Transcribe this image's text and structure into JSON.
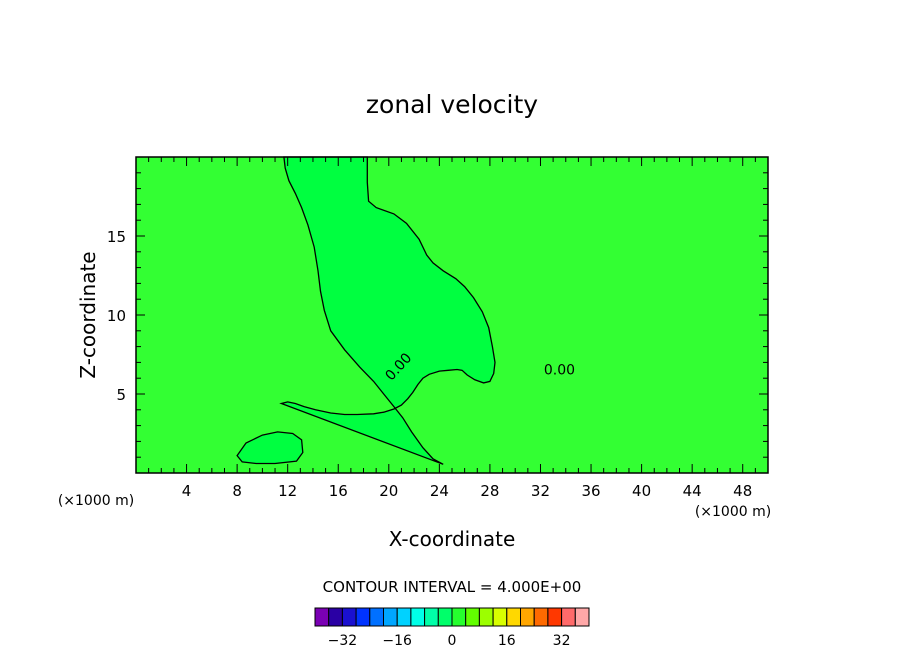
{
  "chart_data": {
    "type": "heatmap",
    "title": "zonal velocity",
    "xlabel": "X-coordinate",
    "ylabel": "Z-coordinate",
    "x_unit": "(×1000 m)",
    "xlim": [
      0,
      50
    ],
    "ylim": [
      0,
      20
    ],
    "x_ticks": [
      4,
      8,
      12,
      16,
      20,
      24,
      28,
      32,
      36,
      40,
      44,
      48
    ],
    "y_ticks": [
      5,
      10,
      15
    ],
    "contour_interval_text": "CONTOUR INTERVAL = 4.000E+00",
    "contour_label": "0.00",
    "colorbar": {
      "levels": [
        -36,
        -32,
        -28,
        -24,
        -20,
        -16,
        -12,
        -8,
        -4,
        0,
        4,
        8,
        12,
        16,
        20,
        24,
        28,
        32,
        36
      ],
      "colors": [
        "#7a00b4",
        "#2a00a4",
        "#1a10d0",
        "#0033ff",
        "#0070ff",
        "#00a6ff",
        "#00d2ff",
        "#00ffe8",
        "#00ffa8",
        "#00ff6a",
        "#26ff2e",
        "#62ff00",
        "#9cff00",
        "#d8ff00",
        "#ffd800",
        "#ffa600",
        "#ff6a00",
        "#ff3800",
        "#ff6a6a",
        "#ffa8a8"
      ],
      "tick_labels": [
        {
          "value": -32,
          "text": "−32"
        },
        {
          "value": -16,
          "text": "−16"
        },
        {
          "value": 0,
          "text": "0"
        },
        {
          "value": 16,
          "text": "16"
        },
        {
          "value": 32,
          "text": "32"
        }
      ]
    },
    "field": {
      "background_color": "#33ff33",
      "regions": [
        {
          "name": "zero-contour-plume",
          "fill": "#00ff40",
          "value_range": [
            0,
            4
          ],
          "outline": [
            [
              24.3,
              0.55
            ],
            [
              23.5,
              0.9
            ],
            [
              22.7,
              1.6
            ],
            [
              21.8,
              2.6
            ],
            [
              21.1,
              3.5
            ],
            [
              20.4,
              4.2
            ],
            [
              19.6,
              5.0
            ],
            [
              18.8,
              5.8
            ],
            [
              17.7,
              6.7
            ],
            [
              16.5,
              7.8
            ],
            [
              15.4,
              9.0
            ],
            [
              14.9,
              10.3
            ],
            [
              14.6,
              11.5
            ],
            [
              14.4,
              12.8
            ],
            [
              14.1,
              14.3
            ],
            [
              13.6,
              15.7
            ],
            [
              13.1,
              16.8
            ],
            [
              12.6,
              17.7
            ],
            [
              12.1,
              18.5
            ],
            [
              11.8,
              19.3
            ],
            [
              11.7,
              20.0
            ],
            [
              18.3,
              20.0
            ],
            [
              18.3,
              18.4
            ],
            [
              18.4,
              17.2
            ],
            [
              19.0,
              16.8
            ],
            [
              20.4,
              16.4
            ],
            [
              21.4,
              15.8
            ],
            [
              22.4,
              14.8
            ],
            [
              23.0,
              13.8
            ],
            [
              23.5,
              13.3
            ],
            [
              24.3,
              12.8
            ],
            [
              25.3,
              12.3
            ],
            [
              26.0,
              11.8
            ],
            [
              26.7,
              11.1
            ],
            [
              27.4,
              10.2
            ],
            [
              27.9,
              9.2
            ],
            [
              28.2,
              8.0
            ],
            [
              28.4,
              7.0
            ],
            [
              28.3,
              6.3
            ],
            [
              28.0,
              5.8
            ],
            [
              27.5,
              5.7
            ],
            [
              26.8,
              5.9
            ],
            [
              26.2,
              6.2
            ],
            [
              25.8,
              6.5
            ],
            [
              25.4,
              6.55
            ],
            [
              24.7,
              6.5
            ],
            [
              24.0,
              6.45
            ],
            [
              23.2,
              6.25
            ],
            [
              22.7,
              6.0
            ],
            [
              22.3,
              5.6
            ],
            [
              21.9,
              5.1
            ],
            [
              21.5,
              4.7
            ],
            [
              21.0,
              4.3
            ],
            [
              20.4,
              4.05
            ],
            [
              19.6,
              3.85
            ],
            [
              18.8,
              3.75
            ],
            [
              17.5,
              3.7
            ],
            [
              16.5,
              3.7
            ],
            [
              15.4,
              3.8
            ],
            [
              14.2,
              4.0
            ],
            [
              13.3,
              4.2
            ],
            [
              12.6,
              4.4
            ],
            [
              12.0,
              4.5
            ],
            [
              11.5,
              4.4
            ]
          ],
          "polyline_note": "plume boundary"
        },
        {
          "name": "left-low-blob",
          "fill": "#00ff40",
          "outline": [
            [
              8.0,
              1.1
            ],
            [
              8.7,
              1.9
            ],
            [
              10.0,
              2.4
            ],
            [
              11.2,
              2.6
            ],
            [
              12.4,
              2.5
            ],
            [
              13.1,
              2.1
            ],
            [
              13.2,
              1.3
            ],
            [
              12.7,
              0.75
            ],
            [
              11.0,
              0.6
            ],
            [
              9.5,
              0.6
            ],
            [
              8.4,
              0.7
            ]
          ]
        }
      ],
      "contour_labels": [
        {
          "x": 20.8,
          "y": 6.7,
          "angle": -48
        },
        {
          "x": 33.5,
          "y": 6.5,
          "angle": 0
        }
      ]
    }
  }
}
